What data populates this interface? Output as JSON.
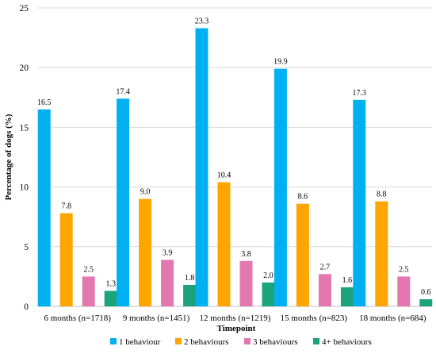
{
  "chart_data": {
    "type": "bar",
    "title": "",
    "xlabel": "Timepoint",
    "ylabel": "Percentage of dogs (%)",
    "ylim": [
      0,
      25
    ],
    "yticks": [
      0,
      5,
      10,
      15,
      20,
      25
    ],
    "grid": true,
    "legend_position": "bottom",
    "categories": [
      "6 months (n=1718)",
      "9 months (n=1451)",
      "12 months (n=1219)",
      "15 months (n=823)",
      "18 months (n=684)"
    ],
    "series": [
      {
        "name": "1 behaviour",
        "color": "#00B0F0",
        "values": [
          16.5,
          17.4,
          23.3,
          19.9,
          17.3
        ],
        "labels": [
          "16.5",
          "17.4",
          "23.3",
          "19.9",
          "17.3"
        ]
      },
      {
        "name": "2 behaviours",
        "color": "#FFA500",
        "values": [
          7.8,
          9.0,
          10.4,
          8.6,
          8.8
        ],
        "labels": [
          "7.8",
          "9.0",
          "10.4",
          "8.6",
          "8.8"
        ]
      },
      {
        "name": "3 behaviours",
        "color": "#E377AF",
        "values": [
          2.5,
          3.9,
          3.8,
          2.7,
          2.5
        ],
        "labels": [
          "2.5",
          "3.9",
          "3.8",
          "2.7",
          "2.5"
        ]
      },
      {
        "name": "4+ behaviours",
        "color": "#1BA37B",
        "values": [
          1.3,
          1.8,
          2.0,
          1.6,
          0.6
        ],
        "labels": [
          "1.3",
          "1.8",
          "2.0",
          "1.6",
          "0.6"
        ]
      }
    ]
  }
}
